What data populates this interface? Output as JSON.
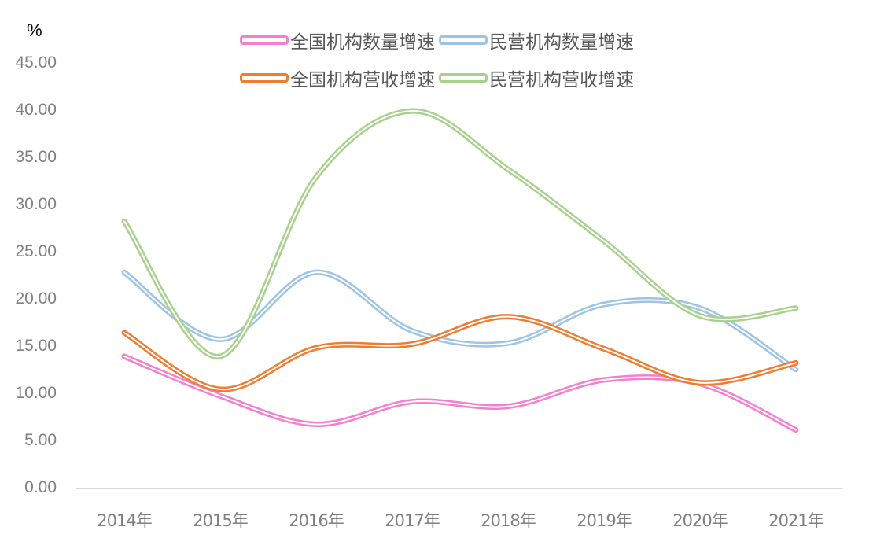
{
  "chart_data": {
    "type": "line",
    "title": "",
    "xlabel": "",
    "ylabel": "%",
    "ylim": [
      0,
      45
    ],
    "yticks": [
      "0.00",
      "5.00",
      "10.00",
      "15.00",
      "20.00",
      "25.00",
      "30.00",
      "35.00",
      "40.00",
      "45.00"
    ],
    "grid": false,
    "legend_position": "top",
    "smooth": true,
    "categories": [
      "2014年",
      "2015年",
      "2016年",
      "2017年",
      "2018年",
      "2019年",
      "2020年",
      "2021年"
    ],
    "series": [
      {
        "name": "全国机构数量增速",
        "color": "#f47fd0",
        "values": [
          14.0,
          9.8,
          6.8,
          9.2,
          8.7,
          11.5,
          11.1,
          6.2
        ]
      },
      {
        "name": "民营机构数量增速",
        "color": "#9dc3e6",
        "values": [
          22.9,
          15.8,
          22.9,
          16.7,
          15.4,
          19.5,
          19.1,
          12.6
        ]
      },
      {
        "name": "全国机构营收增速",
        "color": "#ed7d31",
        "values": [
          16.5,
          10.5,
          14.9,
          15.3,
          18.2,
          14.8,
          11.2,
          13.3
        ]
      },
      {
        "name": "民营机构营收增速",
        "color": "#a9d18e",
        "values": [
          28.3,
          14.0,
          33.0,
          40.0,
          33.8,
          26.2,
          18.3,
          19.1
        ]
      }
    ]
  },
  "axis": {
    "unit_label": "%"
  },
  "legend": {
    "items": [
      {
        "label": "全国机构数量增速",
        "color": "#f47fd0"
      },
      {
        "label": "民营机构数量增速",
        "color": "#9dc3e6"
      },
      {
        "label": "全国机构营收增速",
        "color": "#ed7d31"
      },
      {
        "label": "民营机构营收增速",
        "color": "#a9d18e"
      }
    ]
  }
}
